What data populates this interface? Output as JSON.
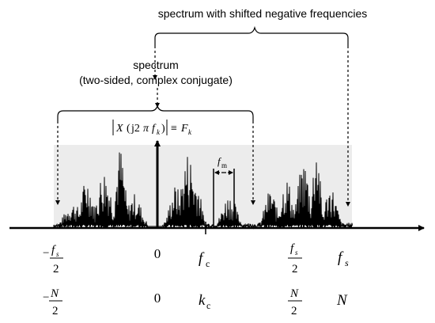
{
  "top_caption": "spectrum with shifted negative frequencies",
  "mid_caption": {
    "line1": "spectrum",
    "line2": "(two-sided, complex conjugate)"
  },
  "formula": {
    "X": "X",
    "open_paren": "(",
    "j2": "j2",
    "pi": "π",
    "f": "f",
    "k": "k",
    "close_paren": ")",
    "equiv": "≡",
    "F": "F",
    "sub_k": "k"
  },
  "fm_label": {
    "f": "f",
    "sub": "m"
  },
  "freq_row": {
    "neg_fs": {
      "sign": "−",
      "f": "f",
      "sub": "s",
      "den": "2"
    },
    "zero": "0",
    "fc": {
      "f": "f",
      "sub": "c"
    },
    "half_fs": {
      "f": "f",
      "sub": "s",
      "den": "2"
    },
    "fs": {
      "f": "f",
      "sub": "s"
    }
  },
  "index_row": {
    "neg_N": {
      "sign": "−",
      "N": "N",
      "den": "2"
    },
    "zero": "0",
    "kc": {
      "k": "k",
      "sub": "c"
    },
    "half_N": {
      "N": "N",
      "den": "2"
    },
    "N": "N"
  },
  "colors": {
    "shade": "#ececec",
    "ink": "#000000"
  }
}
